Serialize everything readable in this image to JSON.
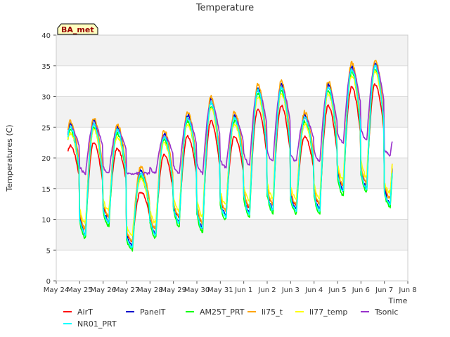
{
  "chart_data": {
    "type": "line",
    "title": "Temperature",
    "xlabel": "Time",
    "ylabel": "Temperatures (C)",
    "ylim": [
      0,
      40
    ],
    "yticks": [
      0,
      5,
      10,
      15,
      20,
      25,
      30,
      35,
      40
    ],
    "xlim": [
      "2024-05-24",
      "2024-06-08"
    ],
    "xticks": [
      "May 24",
      "May 25",
      "May 26",
      "May 27",
      "May 28",
      "May 29",
      "May 30",
      "May 31",
      "Jun 1",
      "Jun 2",
      "Jun 3",
      "Jun 4",
      "Jun 5",
      "Jun 6",
      "Jun 7",
      "Jun 8"
    ],
    "grid": true,
    "badge": "BA_met",
    "legend_position": "bottom",
    "daily_extremes": [
      {
        "date": "2024-05-24",
        "min": 11.2,
        "max": null
      },
      {
        "date": "2024-05-25",
        "min": 8.5,
        "max": 22.5
      },
      {
        "date": "2024-05-26",
        "min": 10.5,
        "max": 21.5
      },
      {
        "date": "2024-05-27",
        "min": 6.5,
        "max": 14.5
      },
      {
        "date": "2024-05-28",
        "min": 8.5,
        "max": 20.5
      },
      {
        "date": "2024-05-29",
        "min": 10.5,
        "max": 23.5
      },
      {
        "date": "2024-05-30",
        "min": 9.5,
        "max": 26.0
      },
      {
        "date": "2024-05-31",
        "min": 11.5,
        "max": 23.5
      },
      {
        "date": "2024-06-01",
        "min": 12.0,
        "max": 28.0
      },
      {
        "date": "2024-06-02",
        "min": 12.5,
        "max": 28.5
      },
      {
        "date": "2024-06-03",
        "min": 12.5,
        "max": 23.5
      },
      {
        "date": "2024-06-04",
        "min": 12.5,
        "max": 28.5
      },
      {
        "date": "2024-06-05",
        "min": 15.5,
        "max": 31.5
      },
      {
        "date": "2024-06-06",
        "min": 16.0,
        "max": 32.0
      },
      {
        "date": "2024-06-07",
        "min": 13.5,
        "max": 24.0
      }
    ],
    "series": [
      {
        "name": "AirT",
        "color": "#ff0000",
        "offset_max": 0.0,
        "offset_min": 0.0,
        "noise": 0.4
      },
      {
        "name": "PanelT",
        "color": "#0000cc",
        "offset_max": 3.5,
        "offset_min": -0.8,
        "noise": 0.6
      },
      {
        "name": "AM25T_PRT",
        "color": "#00ff00",
        "offset_max": 2.5,
        "offset_min": -1.5,
        "noise": 0.5
      },
      {
        "name": "li75_t",
        "color": "#ffa500",
        "offset_max": 4.0,
        "offset_min": 0.0,
        "noise": 0.6
      },
      {
        "name": "li77_temp",
        "color": "#ffff00",
        "offset_max": 2.0,
        "offset_min": 1.0,
        "noise": 0.6
      },
      {
        "name": "Tsonic",
        "color": "#9932cc",
        "offset_max": 3.0,
        "offset_min": 0.0,
        "noise": 0.4
      },
      {
        "name": "NR01_PRT",
        "color": "#00ffff",
        "offset_max": 3.0,
        "offset_min": -1.0,
        "noise": 0.5
      }
    ]
  }
}
